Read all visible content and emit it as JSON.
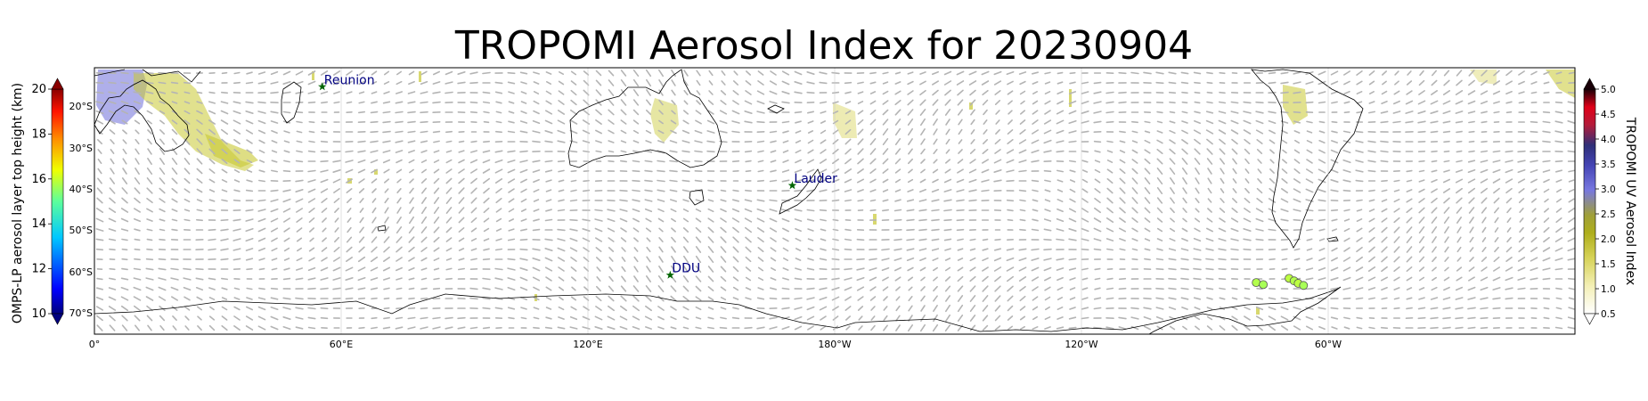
{
  "title": "TROPOMI Aerosol Index for 20230904",
  "map": {
    "lon_ticks": [
      "0°",
      "60°E",
      "120°E",
      "180°W",
      "120°W",
      "60°W"
    ],
    "lat_ticks": [
      "20°S",
      "30°S",
      "40°S",
      "50°S",
      "60°S",
      "70°S"
    ]
  },
  "stations": [
    {
      "name": "Reunion",
      "lon": 55.4,
      "lat": -21.1
    },
    {
      "name": "Lauder",
      "lon": 169.7,
      "lat": -45.0
    },
    {
      "name": "DDU",
      "lon": 140.0,
      "lat": -66.7
    }
  ],
  "left_colorbar": {
    "label": "OMPS-LP aerosol layer top height (km)",
    "ticks": [
      "10",
      "12",
      "14",
      "16",
      "18",
      "20"
    ],
    "range": [
      10,
      20
    ],
    "colormap": "jet"
  },
  "right_colorbar": {
    "label": "TROPOMI UV Aerosol Index",
    "ticks": [
      "0.5",
      "1.0",
      "1.5",
      "2.0",
      "2.5",
      "3.0",
      "3.5",
      "4.0",
      "4.5",
      "5.0"
    ],
    "range": [
      0.5,
      5.0
    ],
    "colors": [
      "#ffffff",
      "#f4f0b8",
      "#d6d256",
      "#aeae1c",
      "#9f9f3a",
      "#7878e0",
      "#4545b5",
      "#2f2f78",
      "#b31b3a",
      "#e00018",
      "#1a0008"
    ]
  },
  "omps_points": [
    {
      "lon": -77.5,
      "lat": -68.5,
      "height_km": 15.5
    },
    {
      "lon": -75.8,
      "lat": -69.0,
      "height_km": 15.4
    },
    {
      "lon": -69.5,
      "lat": -67.5,
      "height_km": 15.6
    },
    {
      "lon": -68.3,
      "lat": -68.1,
      "height_km": 15.5
    },
    {
      "lon": -67.3,
      "lat": -68.7,
      "height_km": 15.6
    },
    {
      "lon": -66.0,
      "lat": -69.2,
      "height_km": 15.4
    }
  ],
  "colors": {
    "station_marker": "#006400",
    "station_label": "#000080",
    "wind_arrow": "#b4b4b4",
    "aerosol_low": "#c8c832",
    "aerosol_high": "#6d6dd8",
    "coastline": "#000000"
  }
}
